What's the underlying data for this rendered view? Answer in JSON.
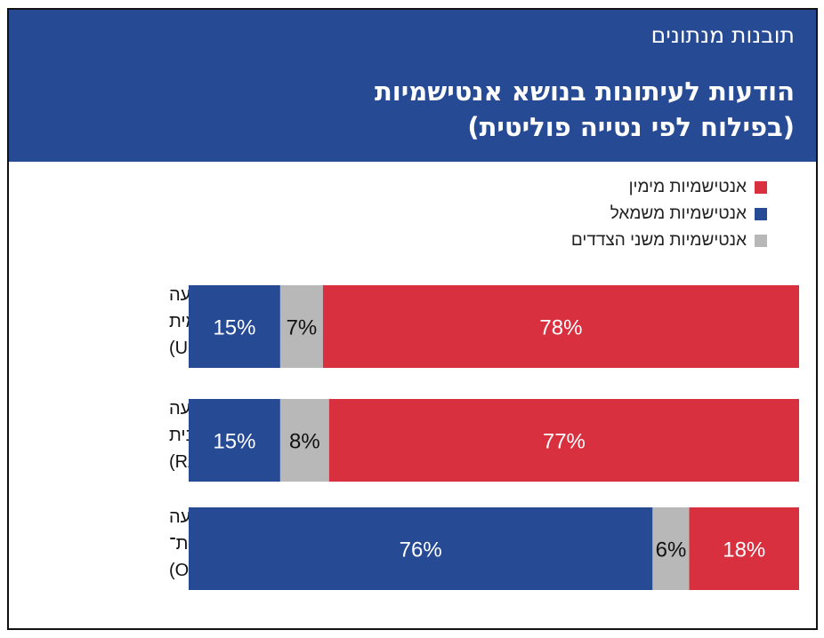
{
  "header": {
    "kicker": "תובנות מנתונים",
    "title_line1": "הודעות לעיתונות בנושא אנטישמיות",
    "title_line2": "(בפילוח לפי נטייה פוליטית)"
  },
  "colors": {
    "header_bg": "#264a94",
    "right": "#d9303f",
    "left": "#264a94",
    "both": "#b8b8b8"
  },
  "chart_data": {
    "type": "bar",
    "orientation": "horizontal",
    "stacked": true,
    "percent": true,
    "categories": [
      [
        "התנועה",
        "הרפורמית",
        "(URJ, RAC)"
      ],
      [
        "התנועה",
        "הקונסרבטיבית",
        "(RA, USCJ)"
      ],
      [
        "התנועה",
        "האורתודוקסית־",
        "מודרנית (OU)"
      ]
    ],
    "series": [
      {
        "key": "left",
        "name": "אנטישמיות משמאל",
        "color": "#264a94",
        "values": [
          15,
          15,
          76
        ]
      },
      {
        "key": "both",
        "name": "אנטישמיות משני הצדדים",
        "color": "#b8b8b8",
        "values": [
          7,
          8,
          6
        ]
      },
      {
        "key": "right",
        "name": "אנטישמיות מימין",
        "color": "#d9303f",
        "values": [
          78,
          77,
          18
        ]
      }
    ],
    "legend_order": [
      "right",
      "left",
      "both"
    ],
    "legend_position": "top-right",
    "xlim": [
      0,
      100
    ]
  }
}
